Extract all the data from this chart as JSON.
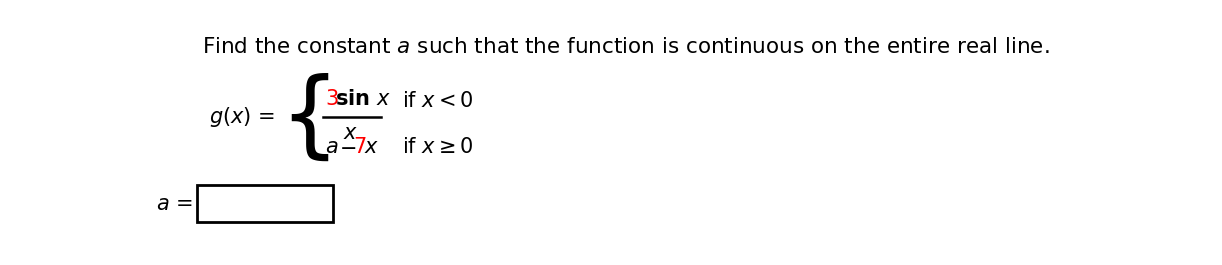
{
  "title_text": "Find the constant $a$ such that the function is continuous on the entire real line.",
  "title_fontsize": 15.5,
  "title_color": "#000000",
  "background_color": "#ffffff",
  "red_color": "#ff0000",
  "black_color": "#000000",
  "fontsize_main": 15,
  "fontsize_title": 15.5
}
